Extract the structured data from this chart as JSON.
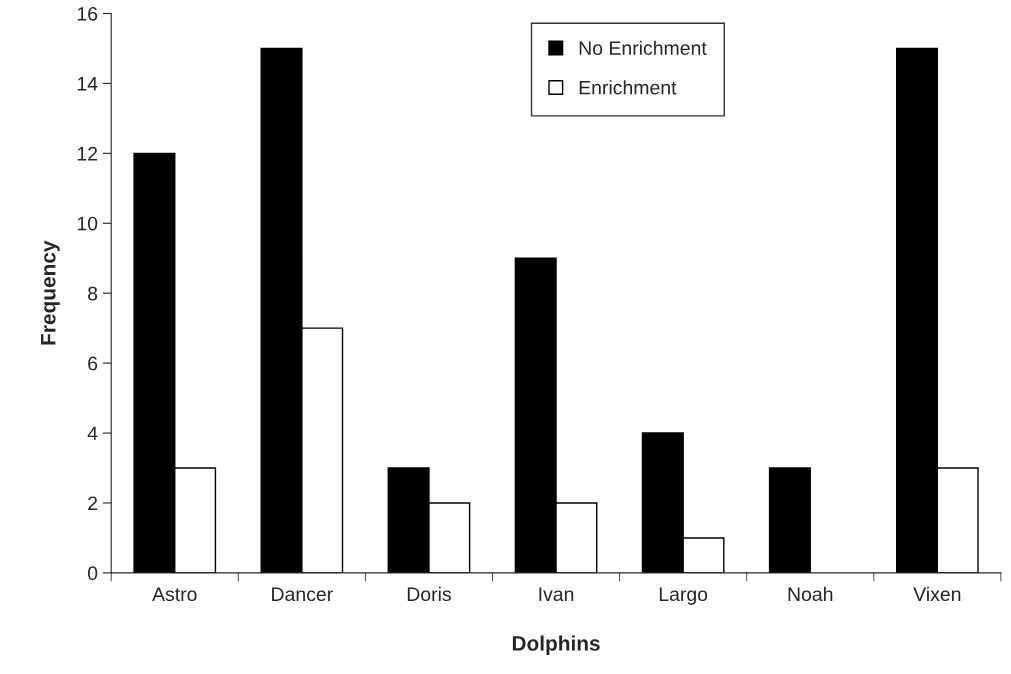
{
  "chart_data": {
    "type": "bar",
    "xlabel": "Dolphins",
    "ylabel": "Frequency",
    "categories": [
      "Astro",
      "Dancer",
      "Doris",
      "Ivan",
      "Largo",
      "Noah",
      "Vixen"
    ],
    "series": [
      {
        "name": "No Enrichment",
        "color": "#000000",
        "values": [
          12,
          15,
          3,
          9,
          4,
          3,
          15
        ]
      },
      {
        "name": "Enrichment",
        "color": "#ffffff",
        "values": [
          3,
          7,
          2,
          2,
          1,
          null,
          3
        ]
      }
    ],
    "ylim": [
      0,
      16
    ],
    "yticks": [
      0,
      2,
      4,
      6,
      8,
      10,
      12,
      14,
      16
    ],
    "grid": false,
    "legend": "top right"
  }
}
